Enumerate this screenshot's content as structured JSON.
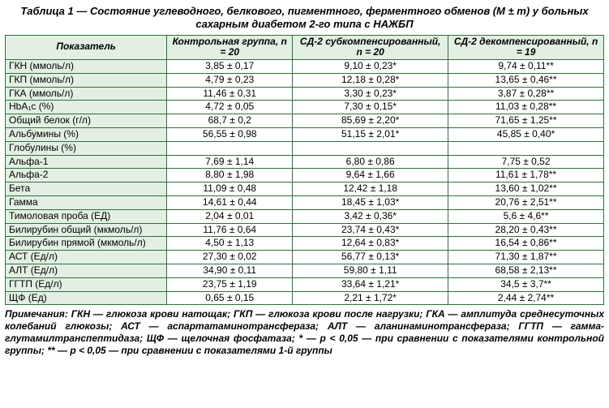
{
  "title": "Таблица 1 — Состояние углеводного, белкового, пигментного, ферментного обменов (M ± m) у больных сахарным диабетом 2-го типа с НАЖБП",
  "columns": [
    "Показатель",
    "Контрольная группа, n = 20",
    "СД-2 субкомпенсированный, n = 20",
    "СД-2 декомпенсированный, n = 19"
  ],
  "rows": [
    [
      "ГКН (ммоль/л)",
      "3,85 ± 0,17",
      "9,10 ± 0,23*",
      "9,74 ± 0,11**"
    ],
    [
      "ГКП (ммоль/л)",
      "4,79 ± 0,23",
      "12,18 ± 0,28*",
      "13,65 ± 0,46**"
    ],
    [
      "ГКА (ммоль/л)",
      "11,46 ± 0,31",
      "3,30 ± 0,23*",
      "3,87 ± 0,28**"
    ],
    [
      "HbA₁c (%)",
      "4,72 ± 0,05",
      "7,30 ± 0,15*",
      "11,03 ± 0,28**"
    ],
    [
      "Общий белок (г/л)",
      "68,7 ± 0,2",
      "85,69 ± 2,20*",
      "71,65 ± 1,25**"
    ],
    [
      "Альбумины (%)",
      "56,55 ± 0,98",
      "51,15 ± 2,01*",
      "45,85 ± 0,40*"
    ],
    [
      "Глобулины (%)",
      "",
      "",
      ""
    ],
    [
      "Альфа-1",
      "7,69 ± 1,14",
      "6,80 ± 0,86",
      "7,75 ± 0,52"
    ],
    [
      "Альфа-2",
      "8,80 ± 1,98",
      "9,64 ± 1,66",
      "11,61 ± 1,78**"
    ],
    [
      "Бета",
      "11,09 ± 0,48",
      "12,42 ± 1,18",
      "13,60 ± 1,02**"
    ],
    [
      "Гамма",
      "14,61 ± 0,44",
      "18,45 ± 1,03*",
      "20,76 ± 2,51**"
    ],
    [
      "Тимоловая проба (ЕД)",
      "2,04 ± 0,01",
      "3,42 ± 0,36*",
      "5,6 ± 4,6**"
    ],
    [
      "Билирубин общий (мкмоль/л)",
      "11,76 ± 0,64",
      "23,74 ± 0,43*",
      "28,20 ± 0,43**"
    ],
    [
      "Билирубин прямой (мкмоль/л)",
      "4,50 ± 1,13",
      "12,64 ± 0,83*",
      "16,54 ± 0,86**"
    ],
    [
      "АСТ (Ед/л)",
      "27,30 ± 0,02",
      "56,77 ± 0,13*",
      "71,30 ± 1,87**"
    ],
    [
      "АЛТ (Ед/л)",
      "34,90 ± 0,11",
      "59,80 ± 1,11",
      "68,58 ± 2,13**"
    ],
    [
      "ГГТП (Ед/л)",
      "23,75 ± 1,19",
      "33,64 ± 1,21*",
      "34,5 ± 3,7**"
    ],
    [
      "ЩФ (Ед)",
      "0,65 ± 0,15",
      "2,21 ± 1,72*",
      "2,44 ± 2,74**"
    ]
  ],
  "notes": "Примечания: ГКН — глюкоза крови натощак; ГКП — глюкоза крови после нагрузки; ГКА — амплитуда среднесуточных колебаний глюкозы; АСТ — аспартатаминотрансфераза; АЛТ — аланинаминотрансфераза; ГГТП — гамма-глутамилтранспептидаза; ЩФ — щелочная фосфатаза; * — p < 0,05 — при сравнении с показателями контрольной группы; ** — p < 0,05 — при сравнении с показателями 1-й группы"
}
